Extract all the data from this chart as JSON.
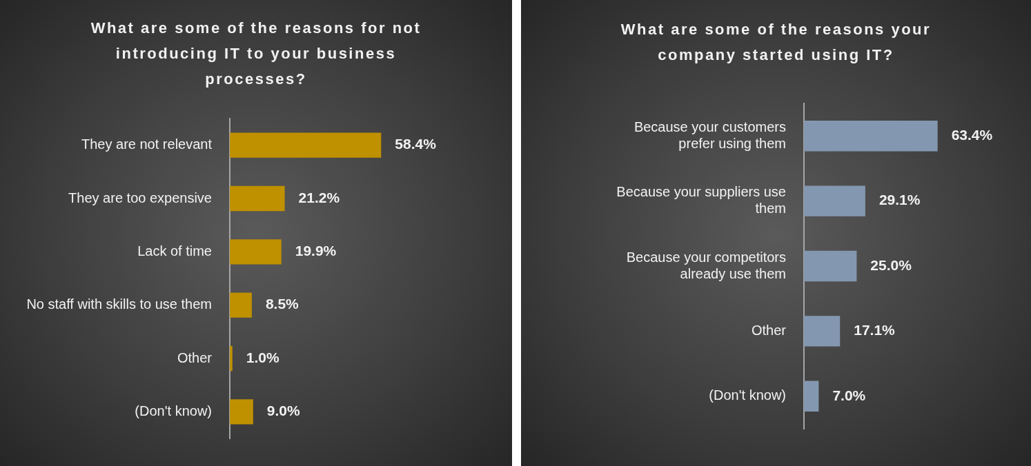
{
  "chart_data": [
    {
      "type": "bar",
      "orientation": "horizontal",
      "title": "What are some of the reasons for not introducing IT to your business processes?",
      "categories": [
        "They are not relevant",
        "They are too expensive",
        "Lack of time",
        "No staff with skills to use them",
        "Other",
        "(Don't know)"
      ],
      "values": [
        58.4,
        21.2,
        19.9,
        8.5,
        1.0,
        9.0
      ],
      "value_labels": [
        "58.4%",
        "21.2%",
        "19.9%",
        "8.5%",
        "1.0%",
        "9.0%"
      ],
      "color": "#bf9000",
      "tick_labels": "y"
    },
    {
      "type": "bar",
      "orientation": "horizontal",
      "title": "What are some of the reasons your company started using IT?",
      "categories": [
        "Because your customers prefer using them",
        "Because your suppliers use them",
        "Because your competitors already use them",
        "Other",
        "(Don't know)"
      ],
      "values": [
        63.4,
        29.1,
        25.0,
        17.1,
        7.0
      ],
      "value_labels": [
        "63.4%",
        "29.1%",
        "25.0%",
        "17.1%",
        "7.0%"
      ],
      "color": "#8497b0",
      "tick_labels": "y"
    }
  ]
}
